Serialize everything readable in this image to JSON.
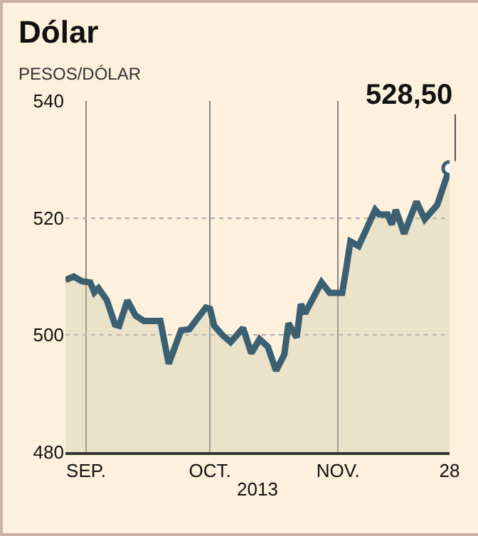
{
  "chart_data": {
    "type": "area",
    "title": "Dólar",
    "subtitle": "PESOS/DÓLAR",
    "xlabel": "2013",
    "x": [
      "2013-08-27",
      "2013-08-29",
      "2013-08-31",
      "2013-09-02",
      "2013-09-03",
      "2013-09-04",
      "2013-09-06",
      "2013-09-08",
      "2013-09-09",
      "2013-09-11",
      "2013-09-13",
      "2013-09-15",
      "2013-09-19",
      "2013-09-21",
      "2013-09-24",
      "2013-09-26",
      "2013-09-30",
      "2013-10-01",
      "2013-10-02",
      "2013-10-04",
      "2013-10-06",
      "2013-10-09",
      "2013-10-11",
      "2013-10-13",
      "2013-10-15",
      "2013-10-17",
      "2013-10-19",
      "2013-10-20",
      "2013-10-22",
      "2013-10-23",
      "2013-10-24",
      "2013-10-28",
      "2013-10-30",
      "2013-11-02",
      "2013-11-03",
      "2013-11-04",
      "2013-11-06",
      "2013-11-10",
      "2013-11-11",
      "2013-11-13",
      "2013-11-14",
      "2013-11-15",
      "2013-11-17",
      "2013-11-20",
      "2013-11-22",
      "2013-11-25",
      "2013-11-28"
    ],
    "series": [
      {
        "color": "#3a6072",
        "values": [
          509.4,
          510,
          509.2,
          509,
          507.3,
          508,
          506,
          501.8,
          501.6,
          505.9,
          503.3,
          502.4,
          502.4,
          495.1,
          500.8,
          501,
          504.7,
          504.5,
          501.6,
          500,
          498.8,
          501.2,
          496.9,
          499.3,
          498,
          493.9,
          496.7,
          502,
          499.6,
          505.3,
          503.7,
          509,
          507.2,
          507.2,
          511.4,
          516,
          515.2,
          521.4,
          520.6,
          520.6,
          518.9,
          521.4,
          517.3,
          522.8,
          519.8,
          522.2,
          528.5
        ]
      }
    ],
    "annotations": [
      {
        "text": "528,50",
        "x": "2013-11-28",
        "y": 528.5
      }
    ],
    "xlim": [
      "2013-08-27",
      "2013-11-28"
    ],
    "xticks": [
      {
        "value": "2013-09-01",
        "label": "SEP."
      },
      {
        "value": "2013-10-01",
        "label": "OCT."
      },
      {
        "value": "2013-11-01",
        "label": "NOV."
      },
      {
        "value": "2013-11-28",
        "label": "28"
      }
    ],
    "ylim": [
      480,
      540
    ],
    "yticks": [
      480,
      500,
      520,
      540
    ],
    "grid": true
  }
}
